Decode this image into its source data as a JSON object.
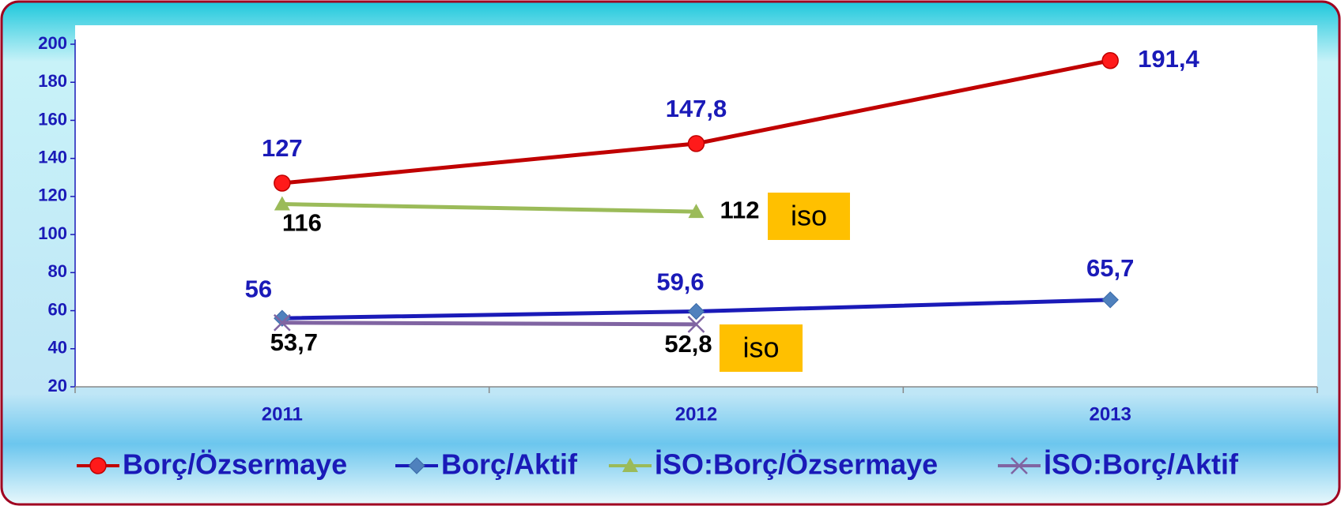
{
  "chart_data": {
    "type": "line",
    "categories": [
      "2011",
      "2012",
      "2013"
    ],
    "series": [
      {
        "name": "Borç/Özsermaye",
        "color": "#c00000",
        "marker": "circle",
        "values": [
          127,
          147.8,
          191.4
        ],
        "value_labels": [
          "127",
          "147,8",
          "191,4"
        ]
      },
      {
        "name": "Borç/Aktif",
        "color": "#1a1ab8",
        "marker": "diamond",
        "values": [
          56,
          59.6,
          65.7
        ],
        "value_labels": [
          "56",
          "59,6",
          "65,7"
        ]
      },
      {
        "name": "İSO:Borç/Özsermaye",
        "color": "#9bbb59",
        "marker": "triangle",
        "values": [
          116,
          112,
          null
        ],
        "value_labels": [
          "116",
          "112",
          null
        ]
      },
      {
        "name": "İSO:Borç/Aktif",
        "color": "#8064a2",
        "marker": "x",
        "values": [
          53.7,
          52.8,
          null
        ],
        "value_labels": [
          "53,7",
          "52,8",
          null
        ]
      }
    ],
    "annotations": [
      "iso",
      "iso"
    ],
    "ylim": [
      20,
      200
    ],
    "yticks": [
      20,
      40,
      60,
      80,
      100,
      120,
      140,
      160,
      180,
      200
    ],
    "legend": "bottom"
  }
}
